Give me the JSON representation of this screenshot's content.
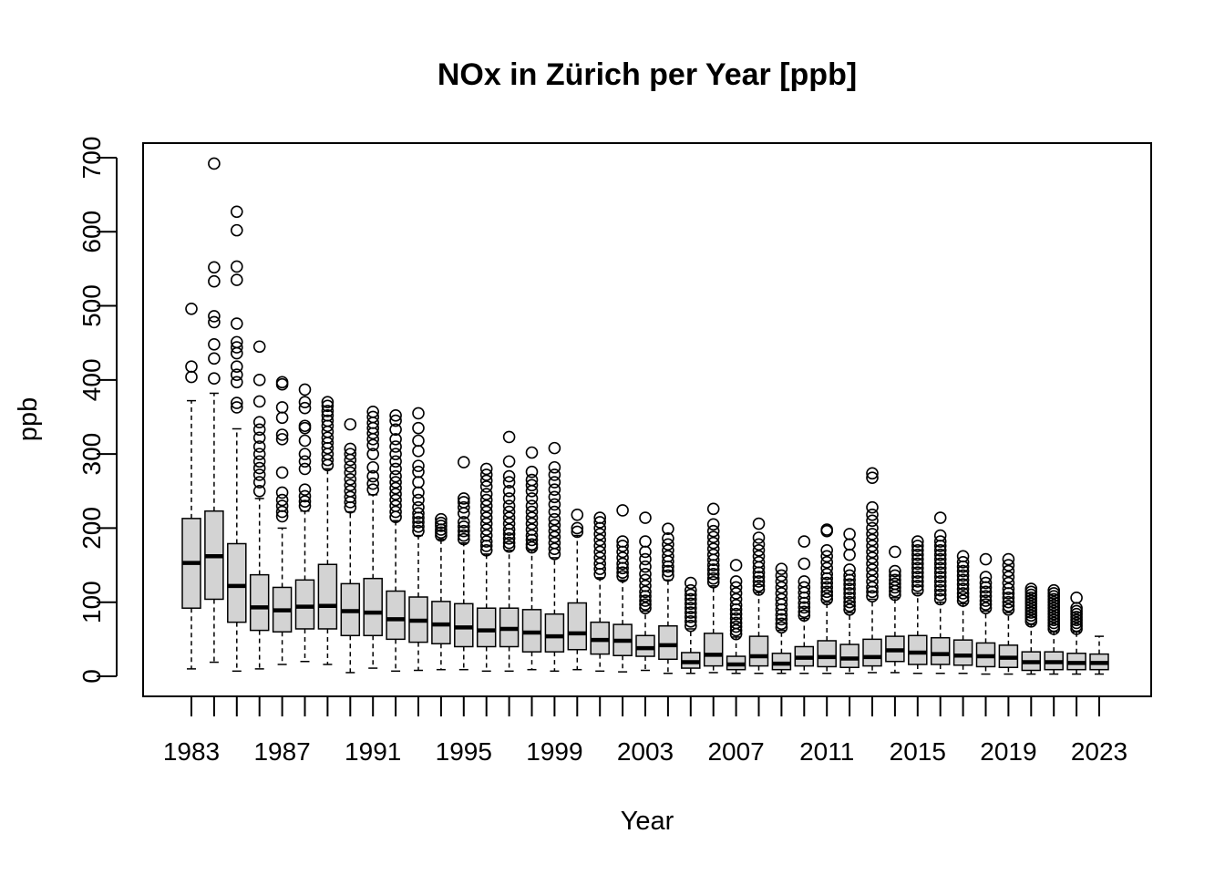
{
  "chart_data": {
    "type": "boxplot",
    "title": "NOx in Zürich per Year [ppb]",
    "xlabel": "Year",
    "ylabel": "ppb",
    "ylim": [
      -25,
      720
    ],
    "y_ticks": [
      0,
      100,
      200,
      300,
      400,
      500,
      600,
      700
    ],
    "x_tick_labels": [
      "1983",
      "1987",
      "1991",
      "1995",
      "1999",
      "2003",
      "2007",
      "2011",
      "2015",
      "2019",
      "2023"
    ],
    "grid": false,
    "box_fill": "#d3d3d3",
    "categories": [
      "1983",
      "1984",
      "1985",
      "1986",
      "1987",
      "1988",
      "1989",
      "1990",
      "1991",
      "1992",
      "1993",
      "1994",
      "1995",
      "1996",
      "1997",
      "1998",
      "1999",
      "2000",
      "2001",
      "2002",
      "2003",
      "2004",
      "2005",
      "2006",
      "2007",
      "2008",
      "2009",
      "2010",
      "2011",
      "2012",
      "2013",
      "2014",
      "2015",
      "2016",
      "2017",
      "2018",
      "2019",
      "2020",
      "2021",
      "2022",
      "2023"
    ],
    "boxes": [
      {
        "year": "1983",
        "whisker_low": 10,
        "q1": 92,
        "median": 153,
        "q3": 213,
        "whisker_high": 372,
        "outliers": [
          404,
          418,
          496
        ]
      },
      {
        "year": "1984",
        "whisker_low": 19,
        "q1": 104,
        "median": 162,
        "q3": 223,
        "whisker_high": 382,
        "outliers": [
          402,
          429,
          448,
          478,
          486,
          533,
          552,
          692
        ]
      },
      {
        "year": "1985",
        "whisker_low": 7,
        "q1": 73,
        "median": 122,
        "q3": 179,
        "whisker_high": 334,
        "outliers": [
          363,
          369,
          397,
          407,
          418,
          436,
          444,
          451,
          476,
          535,
          553,
          602,
          627
        ]
      },
      {
        "year": "1986",
        "whisker_low": 10,
        "q1": 62,
        "median": 93,
        "q3": 137,
        "whisker_high": 240,
        "outliers": [
          250,
          262,
          272,
          281,
          290,
          300,
          310,
          322,
          333,
          343,
          371,
          400,
          445
        ]
      },
      {
        "year": "1987",
        "whisker_low": 16,
        "q1": 60,
        "median": 89,
        "q3": 120,
        "whisker_high": 200,
        "outliers": [
          216,
          222,
          230,
          238,
          248,
          275,
          320,
          326,
          349,
          363,
          394,
          397
        ]
      },
      {
        "year": "1988",
        "whisker_low": 20,
        "q1": 64,
        "median": 94,
        "q3": 130,
        "whisker_high": 223,
        "outliers": [
          230,
          236,
          243,
          252,
          280,
          290,
          300,
          318,
          335,
          338,
          362,
          370,
          387
        ]
      },
      {
        "year": "1989",
        "whisker_low": 16,
        "q1": 64,
        "median": 95,
        "q3": 151,
        "whisker_high": 280,
        "outliers": [
          285,
          292,
          300,
          308,
          315,
          322,
          330,
          338,
          345,
          352,
          358,
          365,
          370
        ]
      },
      {
        "year": "1990",
        "whisker_low": 5,
        "q1": 55,
        "median": 88,
        "q3": 125,
        "whisker_high": 222,
        "outliers": [
          228,
          235,
          242,
          250,
          258,
          266,
          275,
          283,
          292,
          300,
          307,
          340
        ]
      },
      {
        "year": "1991",
        "whisker_low": 11,
        "q1": 55,
        "median": 86,
        "q3": 132,
        "whisker_high": 245,
        "outliers": [
          252,
          260,
          270,
          282,
          300,
          312,
          320,
          328,
          335,
          342,
          350,
          357
        ]
      },
      {
        "year": "1992",
        "whisker_low": 7,
        "q1": 50,
        "median": 77,
        "q3": 115,
        "whisker_high": 210,
        "outliers": [
          215,
          222,
          230,
          238,
          246,
          254,
          262,
          270,
          280,
          290,
          300,
          310,
          320,
          333,
          345,
          352
        ]
      },
      {
        "year": "1993",
        "whisker_low": 8,
        "q1": 46,
        "median": 75,
        "q3": 107,
        "whisker_high": 190,
        "outliers": [
          196,
          202,
          208,
          214,
          220,
          228,
          238,
          248,
          262,
          276,
          284,
          304,
          318,
          335,
          355
        ]
      },
      {
        "year": "1994",
        "whisker_low": 9,
        "q1": 44,
        "median": 70,
        "q3": 101,
        "whisker_high": 185,
        "outliers": [
          190,
          194,
          198,
          203,
          207,
          212
        ]
      },
      {
        "year": "1995",
        "whisker_low": 9,
        "q1": 40,
        "median": 66,
        "q3": 98,
        "whisker_high": 180,
        "outliers": [
          185,
          190,
          196,
          202,
          208,
          220,
          228,
          235,
          240,
          289
        ]
      },
      {
        "year": "1996",
        "whisker_low": 7,
        "q1": 40,
        "median": 62,
        "q3": 92,
        "whisker_high": 165,
        "outliers": [
          170,
          176,
          182,
          190,
          198,
          206,
          214,
          222,
          230,
          238,
          246,
          256,
          264,
          272,
          280
        ]
      },
      {
        "year": "1997",
        "whisker_low": 7,
        "q1": 40,
        "median": 64,
        "q3": 92,
        "whisker_high": 170,
        "outliers": [
          175,
          180,
          186,
          192,
          198,
          206,
          214,
          222,
          230,
          240,
          250,
          262,
          270,
          290,
          323
        ]
      },
      {
        "year": "1998",
        "whisker_low": 9,
        "q1": 33,
        "median": 59,
        "q3": 90,
        "whisker_high": 170,
        "outliers": [
          174,
          178,
          184,
          190,
          198,
          206,
          214,
          222,
          230,
          240,
          250,
          258,
          265,
          276,
          302
        ]
      },
      {
        "year": "1999",
        "whisker_low": 7,
        "q1": 33,
        "median": 54,
        "q3": 84,
        "whisker_high": 160,
        "outliers": [
          165,
          172,
          180,
          188,
          196,
          204,
          212,
          222,
          232,
          242,
          252,
          262,
          272,
          282,
          308
        ]
      },
      {
        "year": "2000",
        "whisker_low": 9,
        "q1": 36,
        "median": 58,
        "q3": 99,
        "whisker_high": 190,
        "outliers": [
          195,
          200,
          218
        ]
      },
      {
        "year": "2001",
        "whisker_low": 7,
        "q1": 30,
        "median": 49,
        "q3": 73,
        "whisker_high": 133,
        "outliers": [
          138,
          145,
          152,
          160,
          168,
          176,
          184,
          192,
          200,
          208,
          214
        ]
      },
      {
        "year": "2002",
        "whisker_low": 6,
        "q1": 28,
        "median": 48,
        "q3": 70,
        "whisker_high": 130,
        "outliers": [
          135,
          140,
          146,
          152,
          160,
          168,
          176,
          182,
          224
        ]
      },
      {
        "year": "2003",
        "whisker_low": 8,
        "q1": 27,
        "median": 38,
        "q3": 55,
        "whisker_high": 88,
        "outliers": [
          92,
          97,
          102,
          108,
          114,
          122,
          130,
          138,
          148,
          158,
          168,
          182,
          214
        ]
      },
      {
        "year": "2004",
        "whisker_low": 4,
        "q1": 23,
        "median": 42,
        "q3": 68,
        "whisker_high": 130,
        "outliers": [
          136,
          142,
          148,
          155,
          162,
          170,
          178,
          186,
          199
        ]
      },
      {
        "year": "2005",
        "whisker_low": 4,
        "q1": 11,
        "median": 19,
        "q3": 32,
        "whisker_high": 64,
        "outliers": [
          68,
          74,
          80,
          86,
          92,
          98,
          104,
          110,
          116,
          126
        ]
      },
      {
        "year": "2006",
        "whisker_low": 5,
        "q1": 14,
        "median": 29,
        "q3": 58,
        "whisker_high": 122,
        "outliers": [
          127,
          132,
          138,
          144,
          150,
          157,
          164,
          172,
          180,
          188,
          196,
          205,
          226
        ]
      },
      {
        "year": "2007",
        "whisker_low": 4,
        "q1": 9,
        "median": 16,
        "q3": 27,
        "whisker_high": 53,
        "outliers": [
          57,
          62,
          67,
          72,
          78,
          84,
          90,
          96,
          104,
          112,
          120,
          128,
          150
        ]
      },
      {
        "year": "2008",
        "whisker_low": 4,
        "q1": 14,
        "median": 27,
        "q3": 54,
        "whisker_high": 113,
        "outliers": [
          117,
          122,
          128,
          134,
          140,
          147,
          154,
          162,
          170,
          178,
          187,
          206
        ]
      },
      {
        "year": "2009",
        "whisker_low": 4,
        "q1": 9,
        "median": 17,
        "q3": 31,
        "whisker_high": 62,
        "outliers": [
          66,
          71,
          77,
          83,
          90,
          97,
          104,
          112,
          120,
          128,
          136,
          145
        ]
      },
      {
        "year": "2010",
        "whisker_low": 4,
        "q1": 14,
        "median": 25,
        "q3": 40,
        "whisker_high": 78,
        "outliers": [
          82,
          87,
          93,
          99,
          106,
          113,
          120,
          128,
          152,
          182
        ]
      },
      {
        "year": "2011",
        "whisker_low": 4,
        "q1": 13,
        "median": 26,
        "q3": 48,
        "whisker_high": 100,
        "outliers": [
          104,
          109,
          114,
          120,
          126,
          132,
          138,
          146,
          154,
          162,
          170,
          196,
          198
        ]
      },
      {
        "year": "2012",
        "whisker_low": 4,
        "q1": 12,
        "median": 24,
        "q3": 43,
        "whisker_high": 86,
        "outliers": [
          90,
          95,
          100,
          106,
          112,
          118,
          124,
          130,
          136,
          144,
          164,
          178,
          192
        ]
      },
      {
        "year": "2013",
        "whisker_low": 5,
        "q1": 14,
        "median": 26,
        "q3": 50,
        "whisker_high": 104,
        "outliers": [
          108,
          114,
          120,
          128,
          136,
          144,
          152,
          160,
          168,
          176,
          184,
          192,
          200,
          210,
          218,
          228,
          268,
          274
        ]
      },
      {
        "year": "2014",
        "whisker_low": 5,
        "q1": 20,
        "median": 35,
        "q3": 54,
        "whisker_high": 106,
        "outliers": [
          110,
          115,
          120,
          125,
          130,
          136,
          142,
          168
        ]
      },
      {
        "year": "2015",
        "whisker_low": 4,
        "q1": 16,
        "median": 32,
        "q3": 55,
        "whisker_high": 112,
        "outliers": [
          116,
          122,
          128,
          134,
          140,
          146,
          152,
          158,
          164,
          170,
          176,
          182
        ]
      },
      {
        "year": "2016",
        "whisker_low": 4,
        "q1": 16,
        "median": 30,
        "q3": 52,
        "whisker_high": 100,
        "outliers": [
          104,
          110,
          116,
          122,
          128,
          134,
          140,
          146,
          152,
          158,
          164,
          170,
          176,
          182,
          190,
          214
        ]
      },
      {
        "year": "2017",
        "whisker_low": 4,
        "q1": 15,
        "median": 28,
        "q3": 49,
        "whisker_high": 98,
        "outliers": [
          102,
          107,
          112,
          118,
          124,
          130,
          136,
          142,
          148,
          154,
          162
        ]
      },
      {
        "year": "2018",
        "whisker_low": 3,
        "q1": 13,
        "median": 27,
        "q3": 45,
        "whisker_high": 88,
        "outliers": [
          92,
          97,
          102,
          108,
          114,
          120,
          126,
          134,
          158
        ]
      },
      {
        "year": "2019",
        "whisker_low": 3,
        "q1": 12,
        "median": 25,
        "q3": 42,
        "whisker_high": 86,
        "outliers": [
          90,
          95,
          100,
          106,
          112,
          118,
          126,
          134,
          142,
          150,
          158
        ]
      },
      {
        "year": "2020",
        "whisker_low": 3,
        "q1": 8,
        "median": 19,
        "q3": 33,
        "whisker_high": 70,
        "outliers": [
          74,
          78,
          82,
          86,
          90,
          94,
          98,
          102,
          106,
          110,
          114,
          118
        ]
      },
      {
        "year": "2021",
        "whisker_low": 3,
        "q1": 9,
        "median": 19,
        "q3": 33,
        "whisker_high": 60,
        "outliers": [
          64,
          68,
          72,
          76,
          80,
          84,
          88,
          92,
          96,
          100,
          104,
          108,
          112,
          116
        ]
      },
      {
        "year": "2022",
        "whisker_low": 3,
        "q1": 9,
        "median": 18,
        "q3": 31,
        "whisker_high": 60,
        "outliers": [
          64,
          68,
          72,
          76,
          80,
          84,
          88,
          92,
          106
        ]
      },
      {
        "year": "2023",
        "whisker_low": 3,
        "q1": 9,
        "median": 18,
        "q3": 30,
        "whisker_high": 54,
        "outliers": []
      }
    ]
  }
}
